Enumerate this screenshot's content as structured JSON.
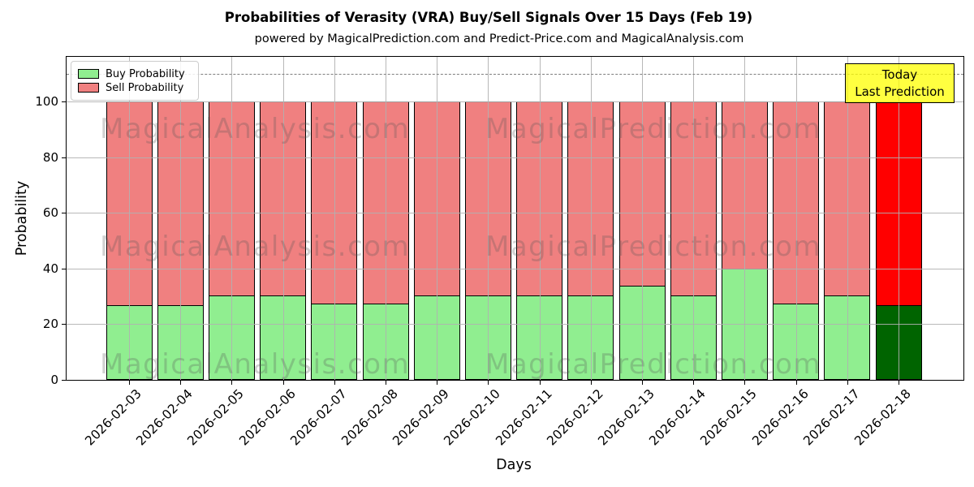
{
  "title": "Probabilities of Verasity (VRA) Buy/Sell Signals Over 15 Days (Feb 19)",
  "subtitle": "powered by MagicalPrediction.com and Predict-Price.com and MagicalAnalysis.com",
  "annotation_box": {
    "line1": "Today",
    "line2": "Last Prediction",
    "bg_color": "#ffff00"
  },
  "legend": [
    {
      "label": "Buy Probability",
      "color": "#90ee90"
    },
    {
      "label": "Sell Probability",
      "color": "#f08080"
    }
  ],
  "watermarks": {
    "left_text": "MagicalAnalysis.com",
    "right_text": "MagicalPrediction.com"
  },
  "axes": {
    "xlabel": "Days",
    "ylabel": "Probability"
  },
  "chart_data": {
    "type": "bar",
    "stacked": true,
    "title": "Probabilities of Verasity (VRA) Buy/Sell Signals Over 15 Days (Feb 19)",
    "xlabel": "Days",
    "ylabel": "Probability",
    "categories": [
      "2026-02-03",
      "2026-02-04",
      "2026-02-05",
      "2026-02-06",
      "2026-02-07",
      "2026-02-08",
      "2026-02-09",
      "2026-02-10",
      "2026-02-11",
      "2026-02-12",
      "2026-02-13",
      "2026-02-14",
      "2026-02-15",
      "2026-02-16",
      "2026-02-17",
      "2026-02-18"
    ],
    "series": [
      {
        "name": "Buy Probability",
        "color": "#90ee90",
        "last_bar_color": "#006400",
        "values": [
          27,
          27,
          30.5,
          30.5,
          27.5,
          27.5,
          30.5,
          30.5,
          30.5,
          30.5,
          34,
          30.5,
          40,
          27.5,
          30.5,
          27
        ]
      },
      {
        "name": "Sell Probability",
        "color": "#f08080",
        "last_bar_color": "#ff0000",
        "values": [
          73,
          73,
          69.5,
          69.5,
          72.5,
          72.5,
          69.5,
          69.5,
          69.5,
          69.5,
          66,
          69.5,
          60,
          72.5,
          69.5,
          73
        ]
      }
    ],
    "yticks": [
      0,
      20,
      40,
      60,
      80,
      100
    ],
    "ylim": [
      0,
      116
    ],
    "dashed_line_y": 110,
    "grid": true,
    "legend_position": "upper left",
    "bar_edge_color": "#000000"
  }
}
